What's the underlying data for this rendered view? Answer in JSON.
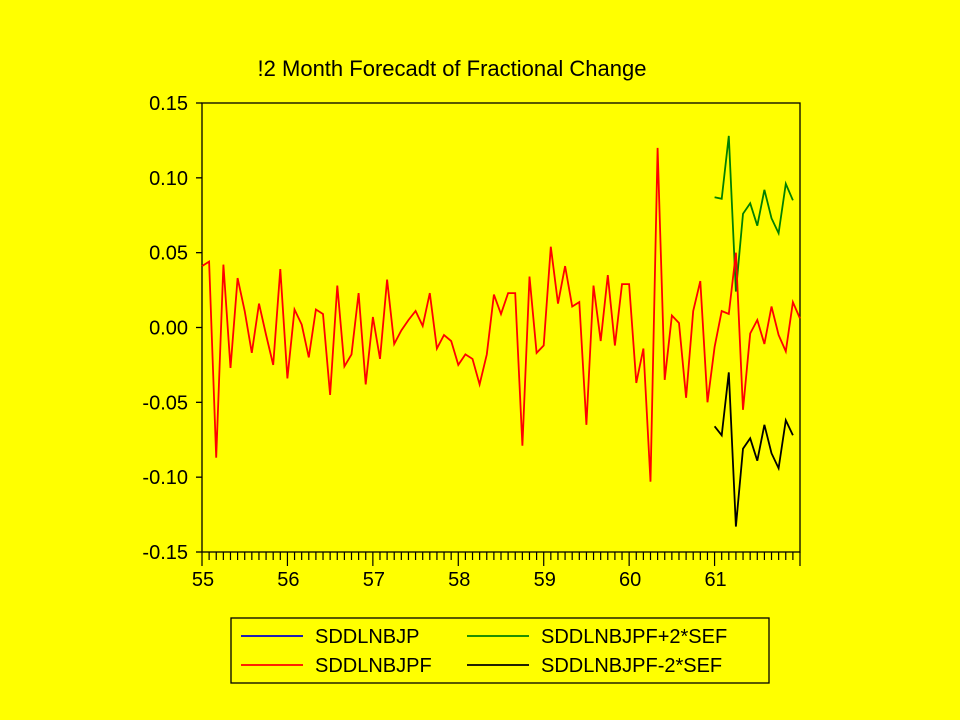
{
  "chart_data": {
    "type": "line",
    "title": "!2 Month Forecadt of Fractional Change",
    "xlabel": "",
    "ylabel": "",
    "xlim": [
      55,
      62
    ],
    "ylim": [
      -0.15,
      0.15
    ],
    "grid": false,
    "legend_position": "bottom",
    "x_tick_values": [
      55,
      56,
      57,
      58,
      59,
      60,
      61
    ],
    "x_tick_labels": [
      "55",
      "56",
      "57",
      "58",
      "59",
      "60",
      "61"
    ],
    "y_tick_values": [
      0.15,
      0.1,
      0.05,
      0.0,
      -0.05,
      -0.1,
      -0.15
    ],
    "y_tick_labels": [
      "0.15",
      "0.10",
      "0.05",
      "0.00",
      "-0.05",
      "-0.10",
      "-0.15"
    ],
    "legend": [
      {
        "name": "SDDLNBJP",
        "color": "#0000CC"
      },
      {
        "name": "SDDLNBJPF+2*SEF",
        "color": "#008000"
      },
      {
        "name": "SDDLNBJPF",
        "color": "#FF0000"
      },
      {
        "name": "SDDLNBJPF-2*SEF",
        "color": "#000000"
      }
    ],
    "series": [
      {
        "name": "SDDLNBJPF+2*SEF",
        "color": "#008000",
        "start": 61.0,
        "step": 0.083333,
        "values": [
          0.087,
          0.086,
          0.128,
          0.024,
          0.076,
          0.083,
          0.068,
          0.092,
          0.073,
          0.063,
          0.096,
          0.085
        ]
      },
      {
        "name": "SDDLNBJPF-2*SEF",
        "color": "#000000",
        "start": 61.0,
        "step": 0.083333,
        "values": [
          -0.066,
          -0.072,
          -0.03,
          -0.133,
          -0.081,
          -0.074,
          -0.089,
          -0.065,
          -0.084,
          -0.094,
          -0.062,
          -0.072
        ]
      },
      {
        "name": "SDDLNBJPF",
        "color": "#FF0000",
        "start": 55.0,
        "step": 0.083333,
        "values": [
          0.041,
          0.044,
          -0.087,
          0.042,
          -0.027,
          0.033,
          0.011,
          -0.017,
          0.016,
          -0.005,
          -0.025,
          0.039,
          -0.034,
          0.012,
          0.002,
          -0.02,
          0.012,
          0.009,
          -0.045,
          0.028,
          -0.026,
          -0.018,
          0.023,
          -0.038,
          0.007,
          -0.021,
          0.032,
          -0.011,
          -0.002,
          0.005,
          0.011,
          0.001,
          0.023,
          -0.014,
          -0.005,
          -0.009,
          -0.025,
          -0.018,
          -0.021,
          -0.038,
          -0.018,
          0.022,
          0.009,
          0.023,
          0.023,
          -0.079,
          0.034,
          -0.017,
          -0.012,
          0.054,
          0.016,
          0.041,
          0.014,
          0.017,
          -0.065,
          0.028,
          -0.009,
          0.035,
          -0.012,
          0.029,
          0.029,
          -0.037,
          -0.014,
          -0.103,
          0.12,
          -0.035,
          0.008,
          0.003,
          -0.047,
          0.011,
          0.031,
          -0.05,
          -0.013,
          0.011,
          0.009,
          0.05,
          -0.055,
          -0.004,
          0.005,
          -0.011,
          0.014,
          -0.005,
          -0.016,
          0.017,
          0.006
        ]
      }
    ]
  }
}
